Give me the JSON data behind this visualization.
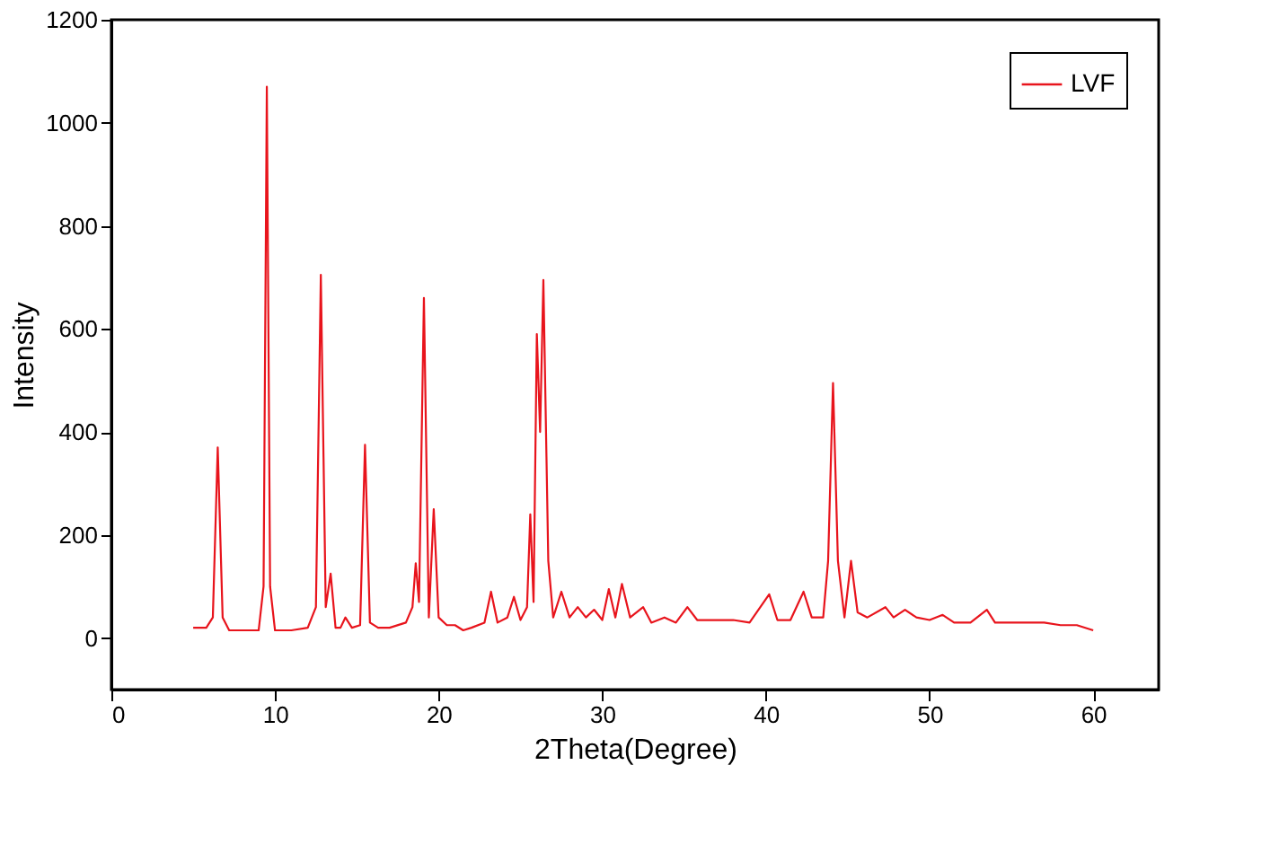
{
  "chart_data": {
    "type": "line",
    "xlabel": "2Theta(Degree)",
    "ylabel": "Intensity",
    "xlim": [
      0,
      64
    ],
    "ylim": [
      -100,
      1200
    ],
    "xticks": [
      0,
      10,
      20,
      30,
      40,
      50,
      60
    ],
    "yticks": [
      0,
      200,
      400,
      600,
      800,
      1000,
      1200
    ],
    "grid": false,
    "legend": "top right",
    "marker": "none",
    "line_style": "solid",
    "series": [
      {
        "name": "LVF",
        "color": "#e8141c",
        "x": [
          5,
          5.8,
          6.2,
          6.5,
          6.8,
          7.2,
          8,
          9,
          9.3,
          9.5,
          9.7,
          10,
          11,
          12,
          12.5,
          12.8,
          13.1,
          13.4,
          13.7,
          14,
          14.3,
          14.7,
          15.2,
          15.5,
          15.8,
          16.3,
          17,
          18,
          18.4,
          18.6,
          18.8,
          19.1,
          19.4,
          19.7,
          20,
          20.5,
          21,
          21.5,
          22,
          22.8,
          23.2,
          23.6,
          24.2,
          24.6,
          25,
          25.4,
          25.6,
          25.8,
          26,
          26.2,
          26.4,
          26.7,
          27,
          27.5,
          28,
          28.5,
          29,
          29.5,
          30,
          30.4,
          30.8,
          31.2,
          31.7,
          32.5,
          33,
          33.8,
          34.5,
          35.2,
          35.8,
          37,
          38,
          39,
          40.2,
          40.7,
          41.5,
          42.3,
          42.8,
          43.5,
          43.8,
          44.1,
          44.4,
          44.8,
          45.2,
          45.6,
          46.2,
          47.3,
          47.8,
          48.5,
          49.2,
          50,
          50.8,
          51.5,
          52.5,
          53.5,
          54,
          55,
          56,
          57,
          58,
          59,
          60
        ],
        "values": [
          20,
          20,
          40,
          370,
          40,
          15,
          15,
          15,
          100,
          1070,
          100,
          15,
          15,
          20,
          60,
          705,
          60,
          125,
          20,
          20,
          40,
          20,
          25,
          375,
          30,
          20,
          20,
          30,
          60,
          145,
          70,
          660,
          40,
          250,
          40,
          25,
          25,
          15,
          20,
          30,
          90,
          30,
          40,
          80,
          35,
          60,
          240,
          70,
          590,
          400,
          695,
          150,
          40,
          90,
          40,
          60,
          40,
          55,
          35,
          95,
          40,
          105,
          40,
          60,
          30,
          40,
          30,
          60,
          35,
          35,
          35,
          30,
          85,
          35,
          35,
          90,
          40,
          40,
          150,
          495,
          150,
          40,
          150,
          50,
          40,
          60,
          40,
          55,
          40,
          35,
          45,
          30,
          30,
          55,
          30,
          30,
          30,
          30,
          25,
          25,
          15
        ]
      }
    ]
  }
}
